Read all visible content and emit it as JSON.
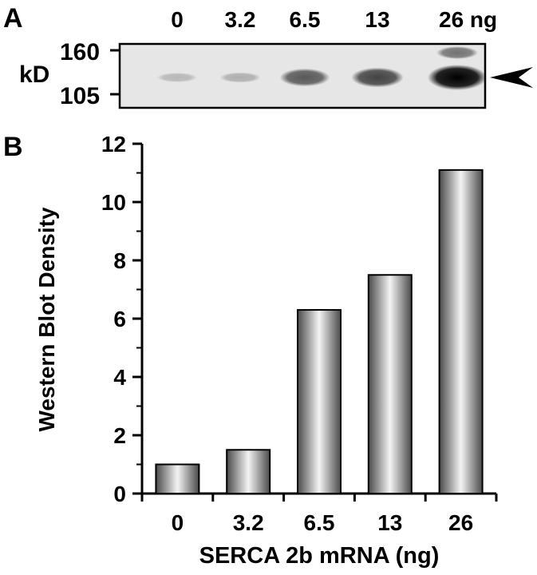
{
  "panel_a": {
    "label": "A",
    "lane_labels": [
      "0",
      "3.2",
      "6.5",
      "13",
      "26 ng"
    ],
    "unit_label": "kD",
    "markers": [
      "160",
      "105"
    ]
  },
  "panel_b": {
    "label": "B"
  },
  "chart_data": {
    "type": "bar",
    "categories": [
      "0",
      "3.2",
      "6.5",
      "13",
      "26"
    ],
    "values": [
      1.0,
      1.5,
      6.3,
      7.5,
      11.1
    ],
    "xlabel": "SERCA 2b mRNA (ng)",
    "ylabel": "Western Blot Density",
    "ylim": [
      0,
      12
    ],
    "yticks": [
      "0",
      "2",
      "4",
      "6",
      "8",
      "10",
      "12"
    ],
    "grid": false,
    "legend": "none"
  }
}
